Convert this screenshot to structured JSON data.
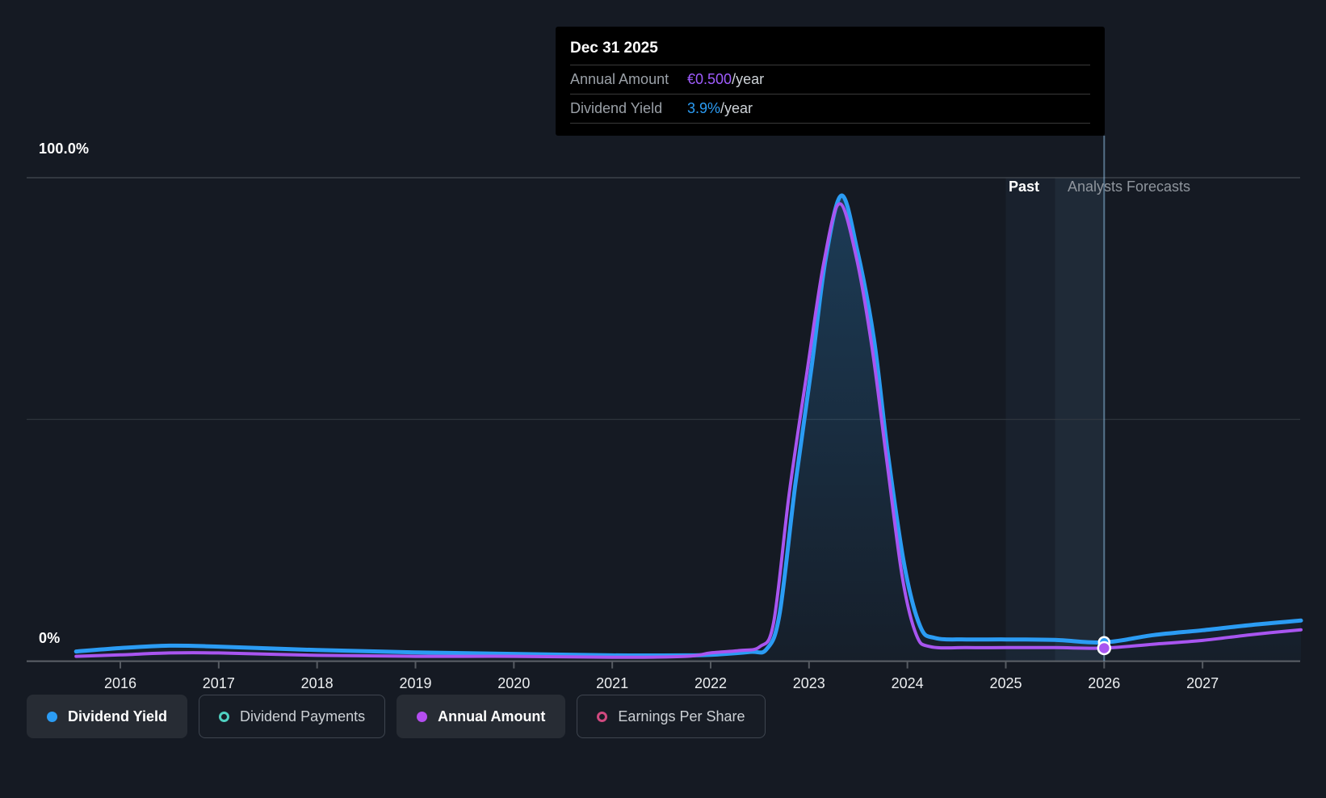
{
  "page": {
    "background": "#151a23"
  },
  "colors": {
    "dividend_yield_blue": "#2b9cf4",
    "annual_amount_purple": "#a855f0",
    "legend_purple_dot": "#b44df0",
    "dividend_payments_teal": "#4fd0c0",
    "earnings_per_share_pink": "#d0497f",
    "grid_major": "#50555c",
    "grid_minor": "#343a42",
    "axis_line": "#5c6168",
    "tick": "#565b62",
    "area_top": "rgba(45,140,210,0.30)",
    "area_bottom": "rgba(45,140,210,0.04)",
    "band_soft": "rgba(125,185,235,0.05)",
    "band_bright": "rgba(125,185,235,0.10)",
    "hover_line": "rgba(150,200,240,0.5)",
    "marker_stroke": "#ffffff",
    "tooltip_bg": "#000000",
    "past_text": "#ffffff",
    "forecast_text": "#8f959d"
  },
  "chart": {
    "y_axis": {
      "top_label": "100.0%",
      "bottom_label": "0%"
    },
    "annotations": {
      "past_label": "Past",
      "forecasts_label": "Analysts Forecasts"
    }
  },
  "tooltip": {
    "title": "Dec 31 2025",
    "rows": [
      {
        "label": "Annual Amount",
        "value": "€0.500",
        "suffix": "/year",
        "color": "#a05cff"
      },
      {
        "label": "Dividend Yield",
        "value": "3.9%",
        "suffix": "/year",
        "color": "#2b9cf4"
      }
    ]
  },
  "legend": {
    "items": [
      {
        "label": "Dividend Yield",
        "color": "#2b9cf4",
        "swatch": "filled",
        "active": true
      },
      {
        "label": "Dividend Payments",
        "color": "#4fd0c0",
        "swatch": "outline",
        "active": false
      },
      {
        "label": "Annual Amount",
        "color": "#b44df0",
        "swatch": "filled",
        "active": true
      },
      {
        "label": "Earnings Per Share",
        "color": "#d0497f",
        "swatch": "outline",
        "active": false
      }
    ]
  },
  "chart_data": {
    "type": "line",
    "title": "",
    "xlabel": "",
    "ylabel": "",
    "x_ticks": [
      2016,
      2017,
      2018,
      2019,
      2020,
      2021,
      2022,
      2023,
      2024,
      2025,
      2026,
      2027
    ],
    "xlim": [
      2015.55,
      2028.0
    ],
    "ylim": [
      0,
      100
    ],
    "y_gridlines_pct": [
      100,
      50
    ],
    "grid": true,
    "legend_position": "bottom-left",
    "past_forecast_divider_year": 2025.5,
    "hover_year": 2026.0,
    "hover_date_label": "Dec 31 2025",
    "series": [
      {
        "name": "Dividend Yield",
        "unit": "%",
        "color": "#2b9cf4",
        "hover_value_pct": 3.9,
        "points": [
          [
            2015.55,
            2.0
          ],
          [
            2016,
            2.7
          ],
          [
            2016.5,
            3.2
          ],
          [
            2017,
            3.0
          ],
          [
            2018,
            2.3
          ],
          [
            2019,
            1.8
          ],
          [
            2020,
            1.5
          ],
          [
            2021,
            1.2
          ],
          [
            2021.75,
            1.2
          ],
          [
            2022,
            1.3
          ],
          [
            2022.4,
            1.9
          ],
          [
            2022.57,
            2.5
          ],
          [
            2022.7,
            9.7
          ],
          [
            2022.86,
            36.5
          ],
          [
            2023.03,
            61.5
          ],
          [
            2023.17,
            83.3
          ],
          [
            2023.33,
            96.3
          ],
          [
            2023.49,
            85.0
          ],
          [
            2023.66,
            66.6
          ],
          [
            2023.8,
            43.1
          ],
          [
            2023.97,
            19.7
          ],
          [
            2024.13,
            7.2
          ],
          [
            2024.28,
            4.8
          ],
          [
            2024.6,
            4.5
          ],
          [
            2025,
            4.5
          ],
          [
            2025.5,
            4.4
          ],
          [
            2026,
            3.9
          ],
          [
            2026.5,
            5.4
          ],
          [
            2027,
            6.4
          ],
          [
            2027.5,
            7.5
          ],
          [
            2028,
            8.4
          ]
        ]
      },
      {
        "name": "Annual Amount",
        "unit": "% axis overlay (€0.500/year at Dec 31 2025)",
        "color": "#a855f0",
        "hover_value_pct": 2.7,
        "hover_value_eur": "€0.500",
        "points": [
          [
            2015.55,
            1.0
          ],
          [
            2016,
            1.3
          ],
          [
            2016.5,
            1.7
          ],
          [
            2017,
            1.7
          ],
          [
            2018,
            1.2
          ],
          [
            2019,
            1.0
          ],
          [
            2020,
            1.0
          ],
          [
            2021,
            0.8
          ],
          [
            2021.75,
            1.0
          ],
          [
            2022,
            1.7
          ],
          [
            2022.3,
            2.2
          ],
          [
            2022.5,
            3.0
          ],
          [
            2022.64,
            8.0
          ],
          [
            2022.8,
            34.8
          ],
          [
            2022.98,
            59.9
          ],
          [
            2023.15,
            82.4
          ],
          [
            2023.31,
            94.6
          ],
          [
            2023.48,
            83.6
          ],
          [
            2023.64,
            64.9
          ],
          [
            2023.79,
            41.5
          ],
          [
            2023.95,
            17.2
          ],
          [
            2024.09,
            5.5
          ],
          [
            2024.23,
            3.0
          ],
          [
            2024.6,
            2.8
          ],
          [
            2025,
            2.8
          ],
          [
            2025.5,
            2.8
          ],
          [
            2026,
            2.7
          ],
          [
            2026.5,
            3.5
          ],
          [
            2027,
            4.3
          ],
          [
            2027.5,
            5.5
          ],
          [
            2028,
            6.5
          ]
        ]
      }
    ],
    "legend_only_series": [
      "Dividend Payments",
      "Earnings Per Share"
    ]
  }
}
